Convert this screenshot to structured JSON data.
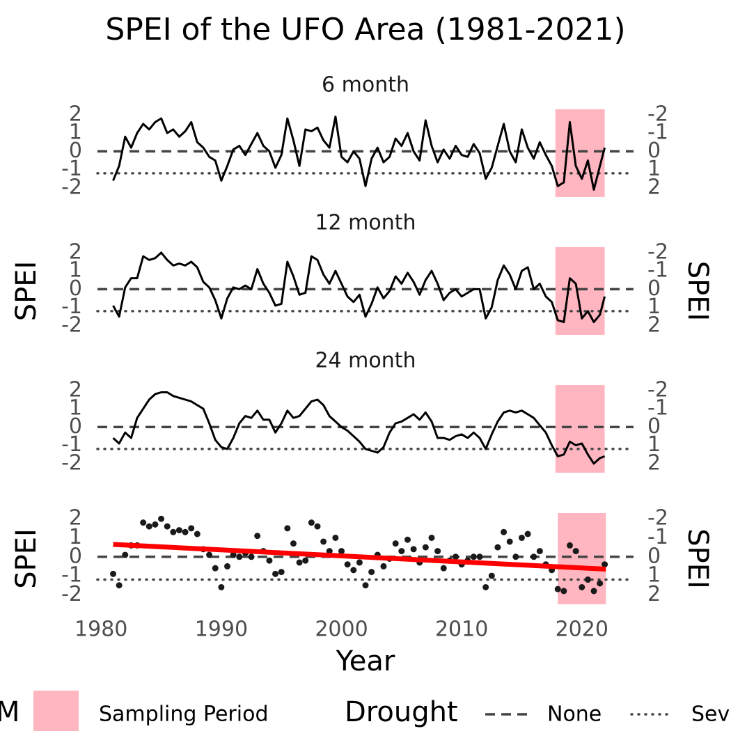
{
  "title": "SPEI of the UFO Area (1981-2021)",
  "x_label": "Year",
  "xlim": [
    1976.8,
    2024.3
  ],
  "xticks": [
    1980,
    1990,
    2000,
    2010,
    2020
  ],
  "legend": {
    "fill_title": "M",
    "fill_label": "Sampling Period",
    "fill_color": "#ffb6c1",
    "line_title": "Drought",
    "line_labels": [
      "None",
      "Sev"
    ]
  },
  "chart_data": [
    {
      "type": "line",
      "subtitle": "6 month",
      "color": "#000000",
      "x": [
        1981,
        1981.5,
        1982,
        1982.5,
        1983,
        1983.5,
        1984,
        1984.5,
        1985,
        1985.5,
        1986,
        1986.5,
        1987,
        1987.5,
        1988,
        1988.5,
        1989,
        1989.5,
        1990,
        1990.5,
        1991,
        1991.5,
        1992,
        1992.5,
        1993,
        1993.5,
        1994,
        1994.5,
        1995,
        1995.5,
        1996,
        1996.5,
        1997,
        1997.5,
        1998,
        1998.5,
        1999,
        1999.5,
        2000,
        2000.5,
        2001,
        2001.5,
        2002,
        2002.5,
        2003,
        2003.5,
        2004,
        2004.5,
        2005,
        2005.5,
        2006,
        2006.5,
        2007,
        2007.5,
        2008,
        2008.5,
        2009,
        2009.5,
        2010,
        2010.5,
        2011,
        2011.5,
        2012,
        2012.5,
        2013,
        2013.5,
        2014,
        2014.5,
        2015,
        2015.5,
        2016,
        2016.5,
        2017,
        2017.5,
        2018,
        2018.5,
        2019,
        2019.5,
        2020,
        2020.5,
        2021,
        2021.5,
        2021.9
      ],
      "values": [
        -1.6,
        -0.8,
        0.8,
        0.2,
        1.0,
        1.5,
        1.2,
        1.6,
        1.8,
        1.0,
        1.2,
        0.8,
        1.1,
        1.6,
        0.5,
        0.2,
        -0.3,
        -0.5,
        -1.6,
        -0.8,
        0.1,
        0.3,
        -0.2,
        0.4,
        1.0,
        0.3,
        0.0,
        -0.9,
        -0.2,
        1.8,
        0.6,
        -0.8,
        1.2,
        1.1,
        1.3,
        0.6,
        0.2,
        1.9,
        -0.3,
        -0.6,
        0.0,
        -0.4,
        -1.9,
        -0.4,
        0.2,
        -0.6,
        -0.3,
        0.7,
        0.3,
        1.0,
        0.0,
        -0.5,
        1.7,
        0.3,
        -0.6,
        0.1,
        -0.4,
        0.3,
        -0.2,
        -0.3,
        0.4,
        -0.1,
        -1.5,
        -0.9,
        0.3,
        1.5,
        0.0,
        -0.6,
        1.2,
        0.2,
        -0.4,
        0.5,
        -0.2,
        -0.8,
        -1.9,
        -1.7,
        1.6,
        -0.8,
        -1.5,
        -0.5,
        -2.1,
        -0.8,
        0.2
      ],
      "ylim": [
        -2.5,
        2.3
      ],
      "yticks": [
        -2,
        -1,
        0,
        1,
        2
      ],
      "y2lim": [
        2.5,
        -2.3
      ],
      "y2ticks": [
        -2,
        -1,
        0,
        1,
        2
      ],
      "shade": {
        "xlim": [
          2017.8,
          2021.9
        ]
      },
      "hlines": [
        {
          "value": 0,
          "style": "dashed"
        },
        {
          "value": -1.2,
          "style": "dotted"
        }
      ]
    },
    {
      "type": "line",
      "subtitle": "12 month",
      "ylabel": "SPEI",
      "y2label": "SPEI",
      "color": "#000000",
      "x": [
        1981,
        1981.5,
        1982,
        1982.5,
        1983,
        1983.5,
        1984,
        1984.5,
        1985,
        1985.5,
        1986,
        1986.5,
        1987,
        1987.5,
        1988,
        1988.5,
        1989,
        1989.5,
        1990,
        1990.5,
        1991,
        1991.5,
        1992,
        1992.5,
        1993,
        1993.5,
        1994,
        1994.5,
        1995,
        1995.5,
        1996,
        1996.5,
        1997,
        1997.5,
        1998,
        1998.5,
        1999,
        1999.5,
        2000,
        2000.5,
        2001,
        2001.5,
        2002,
        2002.5,
        2003,
        2003.5,
        2004,
        2004.5,
        2005,
        2005.5,
        2006,
        2006.5,
        2007,
        2007.5,
        2008,
        2008.5,
        2009,
        2009.5,
        2010,
        2010.5,
        2011,
        2011.5,
        2012,
        2012.5,
        2013,
        2013.5,
        2014,
        2014.5,
        2015,
        2015.5,
        2016,
        2016.5,
        2017,
        2017.5,
        2018,
        2018.5,
        2019,
        2019.5,
        2020,
        2020.5,
        2021,
        2021.5,
        2021.9
      ],
      "values": [
        -0.9,
        -1.5,
        0.1,
        0.6,
        0.6,
        1.8,
        1.6,
        1.7,
        2.0,
        1.6,
        1.3,
        1.4,
        1.3,
        1.5,
        1.2,
        0.4,
        0.1,
        -0.6,
        -1.6,
        -0.5,
        0.1,
        0.0,
        0.2,
        0.0,
        1.1,
        0.3,
        -0.2,
        -0.9,
        -0.8,
        1.5,
        0.7,
        -0.3,
        -0.2,
        1.8,
        1.6,
        0.8,
        0.3,
        1.0,
        0.3,
        -0.4,
        -0.7,
        -0.3,
        -1.5,
        -0.8,
        0.1,
        -0.5,
        -0.1,
        0.7,
        0.3,
        0.9,
        0.4,
        -0.3,
        0.5,
        1.0,
        0.3,
        -0.6,
        -0.2,
        0.0,
        -0.4,
        -0.2,
        0.0,
        0.0,
        -1.6,
        -1.0,
        0.5,
        1.3,
        0.8,
        0.0,
        1.0,
        1.2,
        0.0,
        0.3,
        -0.4,
        -0.7,
        -1.7,
        -1.8,
        0.6,
        0.3,
        -1.6,
        -1.2,
        -1.8,
        -1.4,
        -0.4
      ],
      "ylim": [
        -2.5,
        2.3
      ],
      "yticks": [
        -2,
        -1,
        0,
        1,
        2
      ],
      "y2lim": [
        2.5,
        -2.3
      ],
      "y2ticks": [
        -2,
        -1,
        0,
        1,
        2
      ],
      "shade": {
        "xlim": [
          2017.8,
          2021.9
        ]
      },
      "hlines": [
        {
          "value": 0,
          "style": "dashed"
        },
        {
          "value": -1.2,
          "style": "dotted"
        }
      ]
    },
    {
      "type": "line",
      "subtitle": "24 month",
      "color": "#000000",
      "x": [
        1981,
        1981.5,
        1982,
        1982.5,
        1983,
        1983.5,
        1984,
        1984.5,
        1985,
        1985.5,
        1986,
        1986.5,
        1987,
        1987.5,
        1988,
        1988.5,
        1989,
        1989.5,
        1990,
        1990.5,
        1991,
        1991.5,
        1992,
        1992.5,
        1993,
        1993.5,
        1994,
        1994.5,
        1995,
        1995.5,
        1996,
        1996.5,
        1997,
        1997.5,
        1998,
        1998.5,
        1999,
        1999.5,
        2000,
        2000.5,
        2001,
        2001.5,
        2002,
        2002.5,
        2003,
        2003.5,
        2004,
        2004.5,
        2005,
        2005.5,
        2006,
        2006.5,
        2007,
        2007.5,
        2008,
        2008.5,
        2009,
        2009.5,
        2010,
        2010.5,
        2011,
        2011.5,
        2012,
        2012.5,
        2013,
        2013.5,
        2014,
        2014.5,
        2015,
        2015.5,
        2016,
        2016.5,
        2017,
        2017.5,
        2018,
        2018.5,
        2019,
        2019.5,
        2020,
        2020.5,
        2021,
        2021.5,
        2021.9
      ],
      "values": [
        -0.6,
        -0.9,
        -0.3,
        -0.6,
        0.5,
        1.0,
        1.5,
        1.8,
        1.9,
        1.9,
        1.7,
        1.6,
        1.5,
        1.4,
        1.2,
        1.0,
        0.2,
        -0.7,
        -1.1,
        -1.2,
        -0.6,
        0.2,
        0.6,
        0.5,
        0.9,
        0.4,
        0.4,
        -0.3,
        0.2,
        0.9,
        0.5,
        0.6,
        1.0,
        1.4,
        1.5,
        1.2,
        0.6,
        0.3,
        0.0,
        -0.2,
        -0.5,
        -0.8,
        -1.2,
        -1.3,
        -1.4,
        -1.1,
        -0.3,
        0.2,
        0.3,
        0.5,
        0.7,
        0.4,
        0.8,
        0.3,
        -0.6,
        -0.6,
        -0.7,
        -0.5,
        -0.4,
        -0.6,
        -0.3,
        -0.6,
        -1.2,
        -0.4,
        0.3,
        0.8,
        0.9,
        0.8,
        0.9,
        0.7,
        0.5,
        0.1,
        -0.3,
        -1.0,
        -1.6,
        -1.5,
        -0.8,
        -1.0,
        -0.9,
        -1.5,
        -2.0,
        -1.7,
        -1.6
      ],
      "ylim": [
        -2.5,
        2.3
      ],
      "yticks": [
        -2,
        -1,
        0,
        1,
        2
      ],
      "y2lim": [
        2.5,
        -2.3
      ],
      "y2ticks": [
        -2,
        -1,
        0,
        1,
        2
      ],
      "shade": {
        "xlim": [
          2017.8,
          2021.9
        ]
      },
      "hlines": [
        {
          "value": 0,
          "style": "dashed"
        },
        {
          "value": -1.2,
          "style": "dotted"
        }
      ]
    },
    {
      "type": "scatter",
      "ylabel": "SPEI",
      "y2label": "SPEI",
      "color": "#1a1a1a",
      "x": [
        1981,
        1981.5,
        1982,
        1982.5,
        1983,
        1983.5,
        1984,
        1984.5,
        1985,
        1985.5,
        1986,
        1986.5,
        1987,
        1987.5,
        1988,
        1988.5,
        1989,
        1989.5,
        1990,
        1990.5,
        1991,
        1991.5,
        1992,
        1992.5,
        1993,
        1993.5,
        1994,
        1994.5,
        1995,
        1995.5,
        1996,
        1996.5,
        1997,
        1997.5,
        1998,
        1998.5,
        1999,
        1999.5,
        2000,
        2000.5,
        2001,
        2001.5,
        2002,
        2002.5,
        2003,
        2003.5,
        2004,
        2004.5,
        2005,
        2005.5,
        2006,
        2006.5,
        2007,
        2007.5,
        2008,
        2008.5,
        2009,
        2009.5,
        2010,
        2010.5,
        2011,
        2011.5,
        2012,
        2012.5,
        2013,
        2013.5,
        2014,
        2014.5,
        2015,
        2015.5,
        2016,
        2016.5,
        2017,
        2017.5,
        2018,
        2018.5,
        2019,
        2019.5,
        2020,
        2020.5,
        2021,
        2021.5,
        2021.9
      ],
      "values": [
        -0.9,
        -1.5,
        0.1,
        0.6,
        0.6,
        1.8,
        1.6,
        1.7,
        2.0,
        1.6,
        1.3,
        1.4,
        1.3,
        1.5,
        1.2,
        0.4,
        0.1,
        -0.6,
        -1.6,
        -0.5,
        0.1,
        0.0,
        0.2,
        0.0,
        1.1,
        0.3,
        -0.2,
        -0.9,
        -0.8,
        1.5,
        0.7,
        -0.3,
        -0.2,
        1.8,
        1.6,
        0.8,
        0.3,
        1.0,
        0.3,
        -0.4,
        -0.7,
        -0.3,
        -1.5,
        -0.8,
        0.1,
        -0.5,
        -0.1,
        0.7,
        0.3,
        0.9,
        0.4,
        -0.3,
        0.5,
        1.0,
        0.3,
        -0.6,
        -0.2,
        0.0,
        -0.4,
        -0.2,
        0.0,
        0.0,
        -1.6,
        -1.0,
        0.5,
        1.3,
        0.8,
        0.0,
        1.0,
        1.2,
        0.0,
        0.3,
        -0.4,
        -0.7,
        -1.7,
        -1.8,
        0.6,
        0.3,
        -1.6,
        -1.2,
        -1.8,
        -1.4,
        -0.4
      ],
      "ylim": [
        -2.5,
        2.3
      ],
      "yticks": [
        -2,
        -1,
        0,
        1,
        2
      ],
      "y2lim": [
        2.5,
        -2.3
      ],
      "y2ticks": [
        -2,
        -1,
        0,
        1,
        2
      ],
      "shade": {
        "xlim": [
          2018,
          2022
        ]
      },
      "hlines": [
        {
          "value": 0,
          "style": "dashed"
        },
        {
          "value": -1.2,
          "style": "dotted"
        }
      ],
      "trend": {
        "x": [
          1981,
          2022
        ],
        "values": [
          0.65,
          -0.65
        ],
        "color": "#ff0000"
      }
    }
  ]
}
